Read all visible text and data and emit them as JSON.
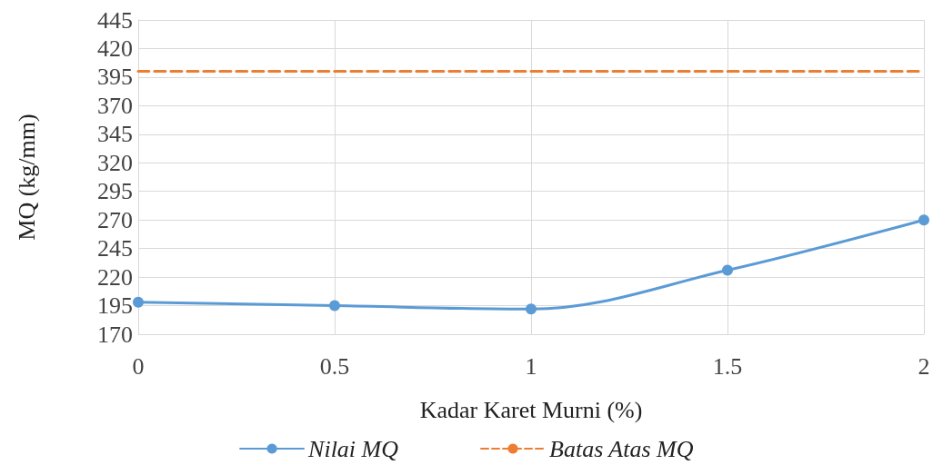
{
  "chart_data": {
    "type": "line",
    "xlabel": "Kadar Karet Murni (%)",
    "ylabel": "MQ (kg/mm)",
    "x": [
      0,
      0.5,
      1,
      1.5,
      2
    ],
    "series": [
      {
        "name": "Nilai MQ",
        "color": "#5b9bd5",
        "values": [
          198,
          195,
          192,
          226,
          270
        ],
        "marker": "circle",
        "line_style": "solid"
      },
      {
        "name": "Batas Atas MQ",
        "color": "#ed7d31",
        "x": [
          0,
          2
        ],
        "values": [
          400,
          400
        ],
        "marker": "none",
        "line_style": "dashed"
      }
    ],
    "xlim": [
      0,
      2
    ],
    "xticks": [
      0,
      0.5,
      1,
      1.5,
      2
    ],
    "ylim": [
      170,
      445
    ],
    "yticks": [
      170,
      195,
      220,
      245,
      270,
      295,
      320,
      345,
      370,
      395,
      420,
      445
    ],
    "grid": true,
    "legend": "bottom"
  }
}
